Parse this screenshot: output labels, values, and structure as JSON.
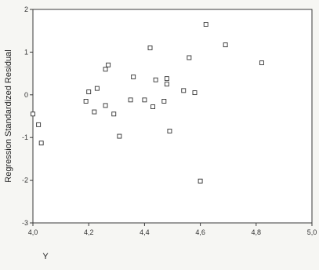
{
  "chart_data": {
    "type": "scatter",
    "title": "",
    "xlabel": "Y",
    "ylabel": "Regression Standardized Residual",
    "xlim": [
      4.0,
      5.0
    ],
    "ylim": [
      -3,
      2
    ],
    "x_ticks": [
      "4,0",
      "4,2",
      "4,4",
      "4,6",
      "4,8",
      "5,0"
    ],
    "y_ticks": [
      "-3",
      "-2",
      "-1",
      "0",
      "1",
      "2"
    ],
    "grid": false,
    "series": [
      {
        "marker": "open-square",
        "points": [
          {
            "x": 4.0,
            "y": -0.45
          },
          {
            "x": 4.02,
            "y": -0.7
          },
          {
            "x": 4.03,
            "y": -1.13
          },
          {
            "x": 4.19,
            "y": -0.15
          },
          {
            "x": 4.2,
            "y": 0.07
          },
          {
            "x": 4.22,
            "y": -0.4
          },
          {
            "x": 4.23,
            "y": 0.15
          },
          {
            "x": 4.26,
            "y": -0.25
          },
          {
            "x": 4.26,
            "y": 0.6
          },
          {
            "x": 4.27,
            "y": 0.7
          },
          {
            "x": 4.29,
            "y": -0.45
          },
          {
            "x": 4.31,
            "y": -0.97
          },
          {
            "x": 4.35,
            "y": -0.12
          },
          {
            "x": 4.36,
            "y": 0.42
          },
          {
            "x": 4.4,
            "y": -0.12
          },
          {
            "x": 4.42,
            "y": 1.1
          },
          {
            "x": 4.43,
            "y": -0.28
          },
          {
            "x": 4.44,
            "y": 0.35
          },
          {
            "x": 4.47,
            "y": -0.15
          },
          {
            "x": 4.48,
            "y": 0.25
          },
          {
            "x": 4.48,
            "y": 0.38
          },
          {
            "x": 4.49,
            "y": -0.85
          },
          {
            "x": 4.54,
            "y": 0.1
          },
          {
            "x": 4.56,
            "y": 0.87
          },
          {
            "x": 4.58,
            "y": 0.05
          },
          {
            "x": 4.6,
            "y": -2.02
          },
          {
            "x": 4.62,
            "y": 1.65
          },
          {
            "x": 4.69,
            "y": 1.17
          },
          {
            "x": 4.82,
            "y": 0.75
          }
        ]
      }
    ],
    "colors": {
      "axis": "#3a3a3a",
      "marker_stroke": "#333333",
      "marker_fill": "#ffffff",
      "plot_background": "#ffffff"
    }
  }
}
